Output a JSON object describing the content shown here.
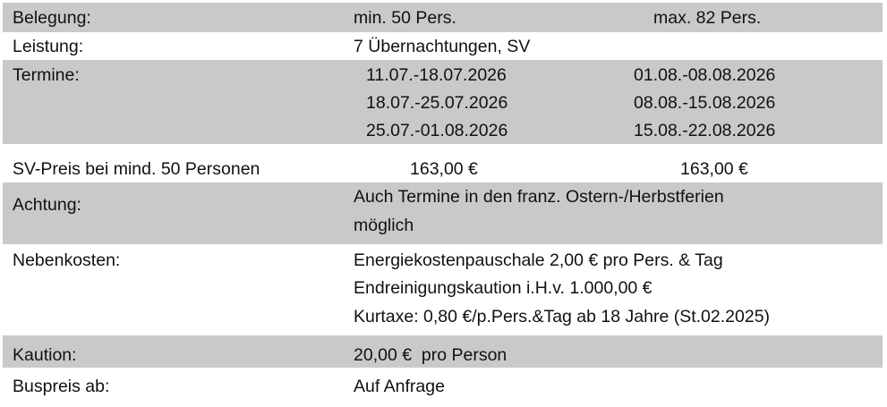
{
  "colors": {
    "row_shade": "#c9c9c9",
    "text": "#111111"
  },
  "rows": {
    "belegung": {
      "label": "Belegung:",
      "min": "min. 50 Pers.",
      "max": "max. 82 Pers."
    },
    "leistung": {
      "label": "Leistung:",
      "value": "7 Übernachtungen, SV"
    },
    "termine": {
      "label": "Termine:",
      "dates": [
        "11.07.-18.07.2026",
        "18.07.-25.07.2026",
        "25.07.-01.08.2026",
        "01.08.-08.08.2026",
        "08.08.-15.08.2026",
        "15.08.-22.08.2026"
      ]
    },
    "preis": {
      "label": "SV-Preis bei mind. 50 Personen",
      "price1": "163,00 €",
      "price2": "163,00 €"
    },
    "achtung": {
      "label": "Achtung:",
      "lines": [
        "Auch Termine in  den franz. Ostern-/Herbstferien",
        "möglich"
      ]
    },
    "nebenkosten": {
      "label": "Nebenkosten:",
      "lines": [
        "Energiekostenpauschale 2,00 € pro Pers. & Tag",
        "Endreinigungskaution i.H.v. 1.000,00 €",
        "Kurtaxe: 0,80 €/p.Pers.&Tag ab 18 Jahre (St.02.2025)"
      ]
    },
    "kaution": {
      "label": "Kaution:",
      "value": "20,00 €  pro Person"
    },
    "buspreis": {
      "label": "Buspreis ab:",
      "value": "Auf Anfrage"
    }
  }
}
